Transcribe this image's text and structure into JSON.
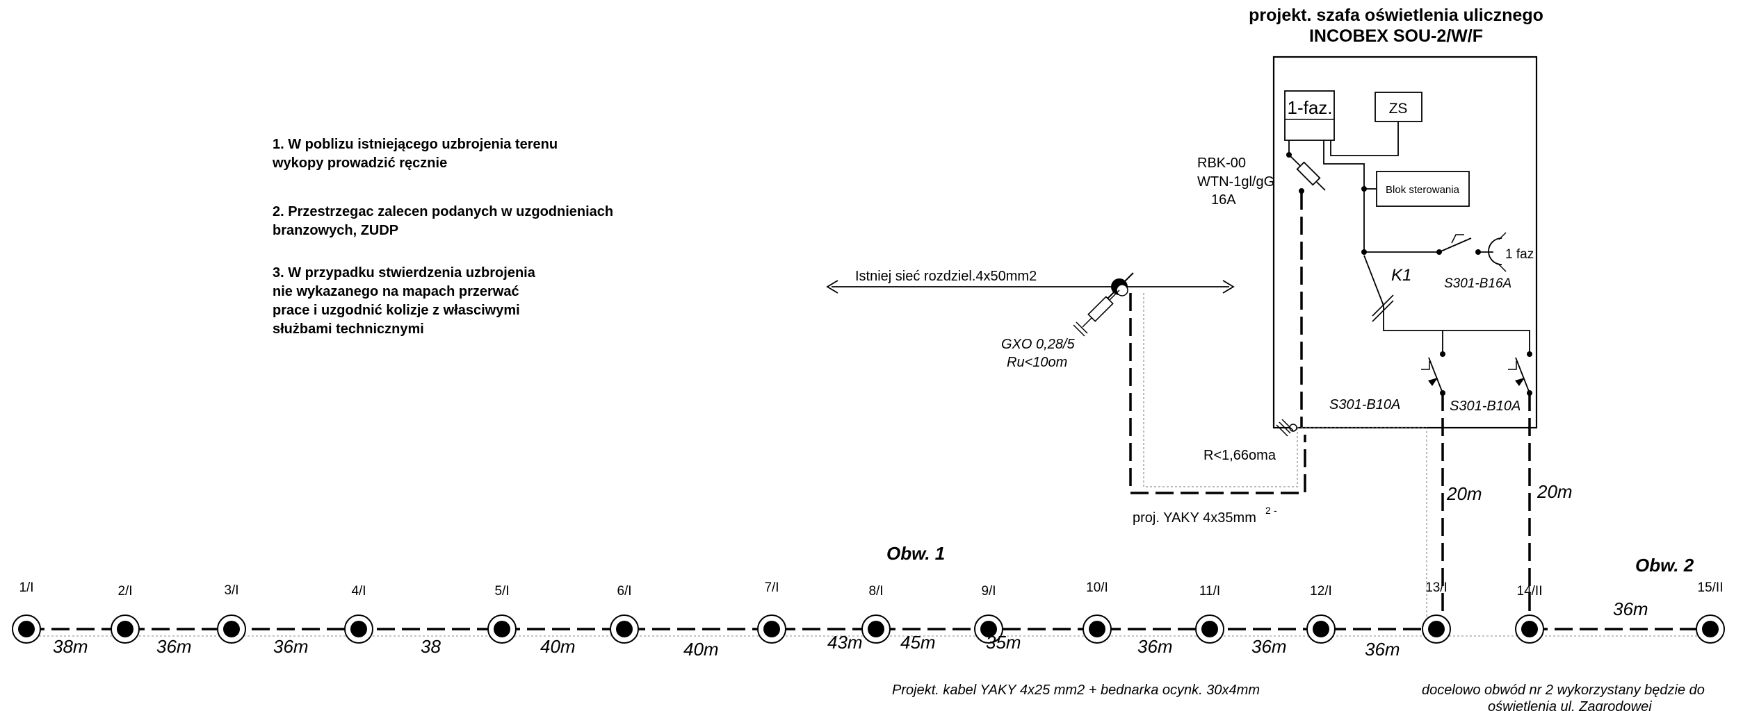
{
  "cabinet": {
    "title_line1": "projekt. szafa oświetlenia ulicznego",
    "title_line2": "INCOBEX  SOU-2/W/F",
    "phase_box": "1-faz.",
    "zs_box": "ZS",
    "control_block": "Blok sterowania",
    "rbk_line1": "RBK-00",
    "rbk_line2": "WTN-1gl/gG",
    "rbk_line3": "16A",
    "contactor": "K1",
    "breaker_top": "S301-B16A",
    "socket_label": "1 faz",
    "breaker_left": "S301-B10A",
    "breaker_right": "S301-B10A",
    "earth_resistance": "R<1,66oma"
  },
  "notes": {
    "note1_line1": "1. W poblizu istniejącego uzbrojenia terenu",
    "note1_line2": "wykopy prowadzić ręcznie",
    "note2_line1": "2. Przestrzegac zalecen podanych w uzgodnieniach",
    "note2_line2": "branzowych, ZUDP",
    "note3_line1": "3. W przypadku stwierdzenia uzbrojenia",
    "note3_line2": "nie wykazanego na mapach przerwać",
    "note3_line3": "prace i uzgodnić kolizje z własciwymi",
    "note3_line4": "służbami  technicznymi"
  },
  "network": {
    "existing_line": "Istniej sieć rozdziel.4x50mm2",
    "gxo_line1": "GXO 0,28/5",
    "gxo_line2": "Ru<10om",
    "feed_cable": "proj. YAKY 4x35mm",
    "feed_cable_sup": "2",
    "feed_cable_tail": "-"
  },
  "circuits": {
    "circuit1_label": "Obw. 1",
    "circuit2_label": "Obw. 2",
    "drop_left": "20m",
    "drop_right": "20m",
    "poles": [
      "1/I",
      "2/I",
      "3/I",
      "4/I",
      "5/I",
      "6/I",
      "7/I",
      "8/I",
      "9/I",
      "10/I",
      "11/I",
      "12/I",
      "13/I",
      "14/II",
      "15/II"
    ],
    "spans": [
      "38m",
      "36m",
      "36m",
      "38",
      "40m",
      "40m",
      "43m",
      "45m",
      "35m",
      "36m",
      "36m",
      "36m",
      "36m"
    ],
    "cable_note": "Projekt. kabel YAKY 4x25 mm2 + bednarka ocynk. 30x4mm",
    "final_note_line1": "docelowo obwód nr 2 wykorzystany będzie do",
    "final_note_line2": "oświetlenia  ul. Zagrodowej"
  }
}
